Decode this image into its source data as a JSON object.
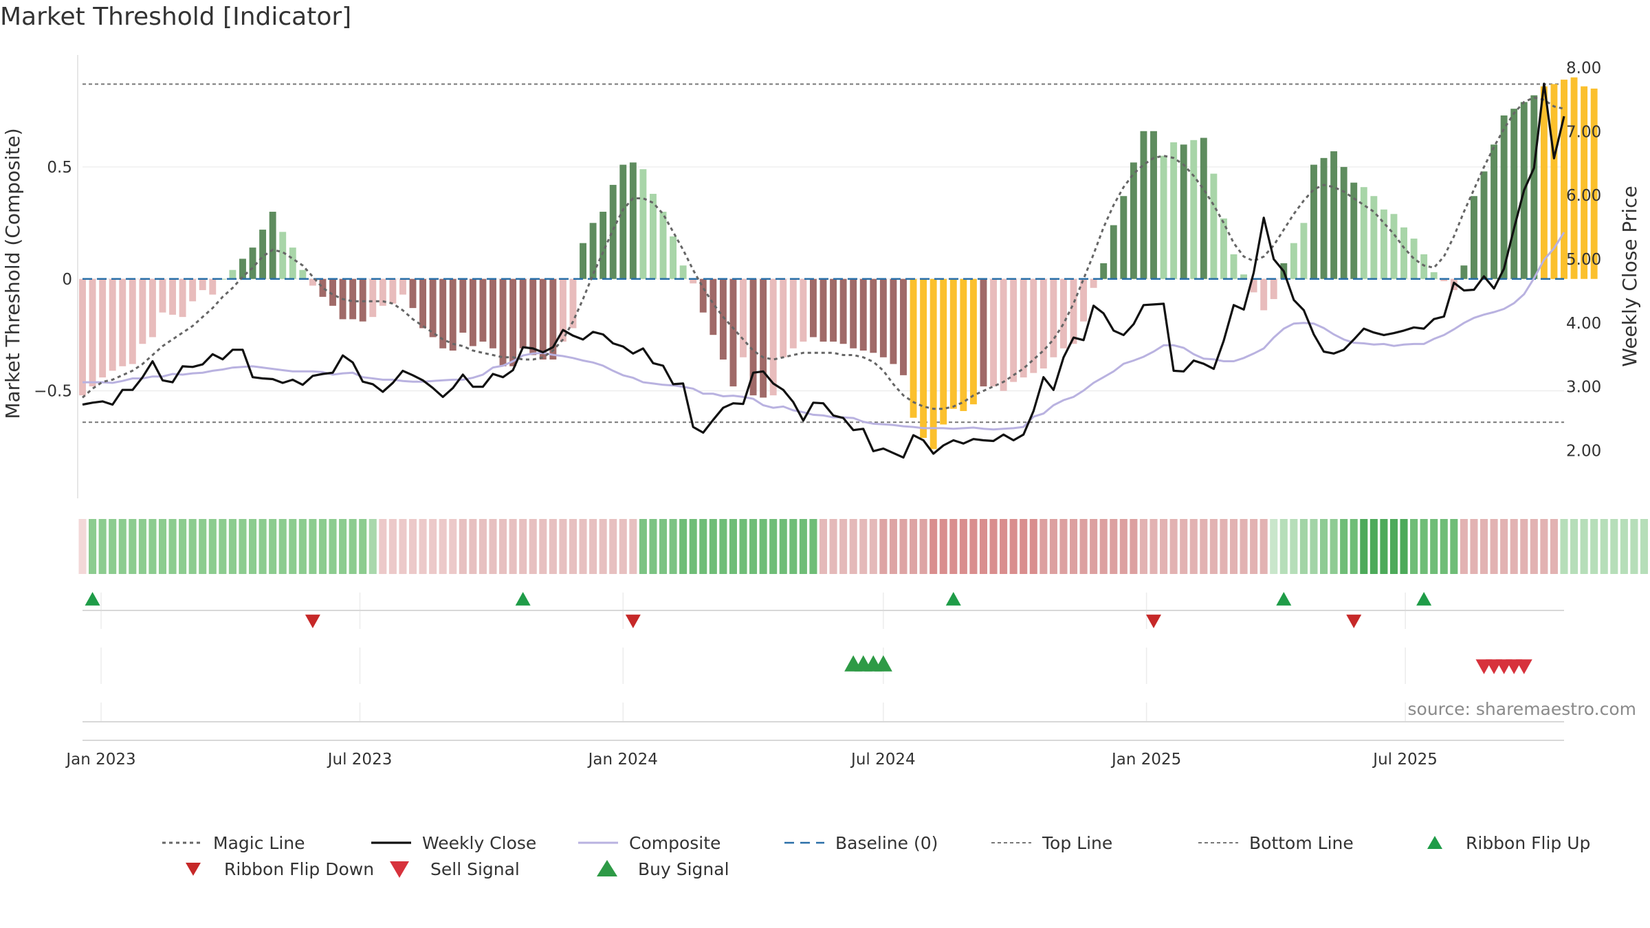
{
  "chart_data": {
    "type": "bar",
    "title": "Market Threshold [Indicator]",
    "ylabel": "Market Threshold (Composite)",
    "y2label": "Weekly Close Price",
    "ylim": [
      -0.98,
      1.0
    ],
    "y2lim": [
      1.25,
      8.2
    ],
    "yticks": [
      0.5,
      0,
      -0.5
    ],
    "ytick_labels": [
      "0.5",
      "0",
      "−0.5"
    ],
    "y2ticks": [
      8,
      7,
      6,
      5,
      4,
      3,
      2
    ],
    "y2tick_labels": [
      "8.00",
      "7.00",
      "6.00",
      "5.00",
      "4.00",
      "3.00",
      "2.00"
    ],
    "x_start": "2022-12-19",
    "x_end": "2025-10-20",
    "xticks": [
      {
        "date": "2023-01-01",
        "label": "Jan 2023"
      },
      {
        "date": "2023-07-01",
        "label": "Jul 2023"
      },
      {
        "date": "2024-01-01",
        "label": "Jan 2024"
      },
      {
        "date": "2024-07-01",
        "label": "Jul 2024"
      },
      {
        "date": "2025-01-01",
        "label": "Jan 2025"
      },
      {
        "date": "2025-07-01",
        "label": "Jul 2025"
      }
    ],
    "top_line": 0.87,
    "bottom_line": -0.64,
    "baseline": 0,
    "grid": true,
    "legend_position": "bottom",
    "source_note": "source: sharemaestro.com",
    "colors": {
      "strong_up": "#5e8c5e",
      "weak_up": "#a8d5a8",
      "strong_down": "#a06a68",
      "weak_down": "#e8bcbc",
      "extreme": "#fbc02d",
      "weekly_close": "#111111",
      "composite": "#b9b2e0",
      "magic": "#666666",
      "baseline": "#2a6fa8",
      "threshold": "#777777",
      "buy": "#2e9a46",
      "sell": "#d7323c",
      "ribbon_flip_up": "#1f9c48",
      "ribbon_flip_down": "#c62828"
    },
    "composite_bars": {
      "start": "2022-12-19",
      "step_days": 7,
      "values": [
        -0.52,
        -0.48,
        -0.44,
        -0.41,
        -0.39,
        -0.38,
        -0.29,
        -0.26,
        -0.15,
        -0.16,
        -0.17,
        -0.1,
        -0.05,
        -0.07,
        0.0,
        0.04,
        0.09,
        0.14,
        0.22,
        0.3,
        0.21,
        0.14,
        0.04,
        -0.03,
        -0.08,
        -0.12,
        -0.18,
        -0.18,
        -0.19,
        -0.17,
        -0.12,
        -0.11,
        -0.07,
        -0.13,
        -0.22,
        -0.26,
        -0.31,
        -0.32,
        -0.24,
        -0.3,
        -0.28,
        -0.31,
        -0.39,
        -0.39,
        -0.31,
        -0.34,
        -0.36,
        -0.36,
        -0.28,
        -0.22,
        0.16,
        0.25,
        0.3,
        0.42,
        0.51,
        0.52,
        0.49,
        0.38,
        0.3,
        0.19,
        0.06,
        -0.02,
        -0.15,
        -0.25,
        -0.36,
        -0.48,
        -0.35,
        -0.52,
        -0.53,
        -0.52,
        -0.35,
        -0.31,
        -0.28,
        -0.26,
        -0.28,
        -0.28,
        -0.29,
        -0.31,
        -0.32,
        -0.33,
        -0.35,
        -0.38,
        -0.43,
        -0.62,
        -0.71,
        -0.76,
        -0.65,
        -0.58,
        -0.59,
        -0.56,
        -0.48,
        -0.48,
        -0.5,
        -0.46,
        -0.44,
        -0.42,
        -0.4,
        -0.35,
        -0.31,
        -0.29,
        -0.19,
        -0.04,
        0.07,
        0.24,
        0.37,
        0.52,
        0.66,
        0.66,
        0.55,
        0.61,
        0.6,
        0.62,
        0.63,
        0.47,
        0.27,
        0.11,
        0.02,
        -0.06,
        -0.14,
        -0.09,
        0.07,
        0.16,
        0.25,
        0.51,
        0.54,
        0.57,
        0.5,
        0.43,
        0.41,
        0.37,
        0.31,
        0.29,
        0.23,
        0.18,
        0.11,
        0.03,
        -0.01,
        -0.05,
        0.06,
        0.37,
        0.48,
        0.6,
        0.73,
        0.76,
        0.79,
        0.82,
        0.86,
        0.87,
        0.89,
        0.9,
        0.86,
        0.85
      ],
      "categories": [
        1,
        1,
        1,
        1,
        1,
        1,
        1,
        1,
        1,
        1,
        1,
        1,
        1,
        1,
        3,
        3,
        2,
        2,
        2,
        2,
        3,
        3,
        3,
        1,
        2,
        2,
        2,
        2,
        2,
        1,
        1,
        1,
        1,
        2,
        2,
        2,
        2,
        2,
        2,
        2,
        2,
        2,
        2,
        2,
        2,
        2,
        2,
        2,
        1,
        1,
        2,
        2,
        2,
        2,
        2,
        2,
        3,
        3,
        3,
        3,
        3,
        1,
        2,
        2,
        2,
        2,
        1,
        2,
        2,
        1,
        1,
        1,
        1,
        2,
        2,
        2,
        2,
        2,
        2,
        2,
        2,
        2,
        2,
        4,
        4,
        4,
        4,
        4,
        4,
        4,
        2,
        1,
        1,
        1,
        1,
        1,
        1,
        1,
        1,
        1,
        1,
        3,
        2,
        2,
        2,
        2,
        2,
        2,
        3,
        3,
        2,
        3,
        2,
        3,
        3,
        3,
        3,
        3,
        1,
        1,
        2,
        1,
        3,
        2,
        2,
        2,
        2,
        2,
        3,
        3,
        3,
        3,
        3,
        3,
        3,
        1,
        1,
        3,
        2,
        2,
        2,
        2,
        2,
        2,
        2,
        2,
        4,
        4,
        4,
        4,
        4,
        4
      ]
    },
    "weekly_close": {
      "start": "2022-12-19",
      "step_days": 7,
      "values": [
        2.72,
        2.75,
        2.77,
        2.72,
        2.95,
        2.95,
        3.15,
        3.4,
        3.1,
        3.07,
        3.32,
        3.31,
        3.35,
        3.51,
        3.43,
        3.58,
        3.58,
        3.15,
        3.13,
        3.12,
        3.06,
        3.11,
        3.03,
        3.17,
        3.2,
        3.22,
        3.49,
        3.38,
        3.08,
        3.04,
        2.92,
        3.06,
        3.25,
        3.18,
        3.1,
        2.98,
        2.84,
        2.98,
        3.19,
        3.0,
        3.0,
        3.2,
        3.15,
        3.26,
        3.62,
        3.6,
        3.54,
        3.62,
        3.89,
        3.8,
        3.74,
        3.86,
        3.82,
        3.68,
        3.63,
        3.52,
        3.6,
        3.37,
        3.33,
        3.04,
        3.05,
        2.37,
        2.28,
        2.48,
        2.67,
        2.74,
        2.73,
        3.22,
        3.24,
        3.05,
        2.95,
        2.76,
        2.47,
        2.75,
        2.74,
        2.55,
        2.51,
        2.32,
        2.34,
        1.99,
        2.03,
        1.96,
        1.89,
        2.24,
        2.16,
        1.95,
        2.08,
        2.16,
        2.11,
        2.18,
        2.16,
        2.15,
        2.25,
        2.16,
        2.25,
        2.62,
        3.15,
        2.95,
        3.46,
        3.77,
        3.73,
        4.27,
        4.15,
        3.88,
        3.81,
        3.98,
        4.28,
        4.29,
        4.3,
        3.25,
        3.24,
        3.41,
        3.36,
        3.28,
        3.72,
        4.28,
        4.21,
        4.79,
        5.65,
        5.0,
        4.81,
        4.36,
        4.2,
        3.82,
        3.55,
        3.52,
        3.58,
        3.74,
        3.91,
        3.85,
        3.81,
        3.84,
        3.88,
        3.93,
        3.91,
        4.06,
        4.1,
        4.63,
        4.51,
        4.52,
        4.73,
        4.54,
        4.85,
        5.48,
        6.08,
        6.43,
        7.75,
        6.58,
        7.24
      ]
    },
    "composite_line": {
      "start": "2022-12-19",
      "step_days": 7,
      "values": [
        3.07,
        3.07,
        3.07,
        3.06,
        3.09,
        3.13,
        3.13,
        3.16,
        3.16,
        3.2,
        3.19,
        3.21,
        3.22,
        3.25,
        3.27,
        3.3,
        3.31,
        3.32,
        3.3,
        3.28,
        3.26,
        3.24,
        3.24,
        3.24,
        3.23,
        3.19,
        3.21,
        3.22,
        3.15,
        3.13,
        3.11,
        3.11,
        3.09,
        3.08,
        3.08,
        3.09,
        3.1,
        3.11,
        3.11,
        3.14,
        3.19,
        3.3,
        3.33,
        3.4,
        3.49,
        3.52,
        3.53,
        3.5,
        3.48,
        3.45,
        3.41,
        3.38,
        3.33,
        3.25,
        3.18,
        3.14,
        3.07,
        3.05,
        3.03,
        3.02,
        3.0,
        2.97,
        2.89,
        2.89,
        2.85,
        2.86,
        2.84,
        2.81,
        2.71,
        2.67,
        2.69,
        2.63,
        2.6,
        2.56,
        2.55,
        2.52,
        2.52,
        2.51,
        2.45,
        2.42,
        2.41,
        2.4,
        2.38,
        2.37,
        2.35,
        2.35,
        2.35,
        2.34,
        2.35,
        2.36,
        2.34,
        2.33,
        2.34,
        2.35,
        2.37,
        2.53,
        2.58,
        2.71,
        2.79,
        2.84,
        2.94,
        3.06,
        3.15,
        3.24,
        3.36,
        3.41,
        3.47,
        3.55,
        3.65,
        3.65,
        3.61,
        3.51,
        3.44,
        3.43,
        3.4,
        3.4,
        3.45,
        3.52,
        3.6,
        3.77,
        3.91,
        3.99,
        4.0,
        3.99,
        3.92,
        3.82,
        3.74,
        3.69,
        3.68,
        3.66,
        3.67,
        3.64,
        3.66,
        3.67,
        3.67,
        3.75,
        3.81,
        3.9,
        4.0,
        4.08,
        4.13,
        4.17,
        4.22,
        4.31,
        4.45,
        4.7,
        4.99,
        5.17,
        5.42
      ]
    },
    "magic_line": {
      "start": "2022-12-19",
      "step_days": 7,
      "values": [
        -0.53,
        -0.49,
        -0.46,
        -0.45,
        -0.43,
        -0.41,
        -0.38,
        -0.34,
        -0.3,
        -0.27,
        -0.24,
        -0.21,
        -0.17,
        -0.13,
        -0.08,
        -0.04,
        0.01,
        0.05,
        0.1,
        0.13,
        0.12,
        0.09,
        0.06,
        0.01,
        -0.04,
        -0.07,
        -0.09,
        -0.1,
        -0.1,
        -0.1,
        -0.1,
        -0.11,
        -0.14,
        -0.18,
        -0.21,
        -0.24,
        -0.27,
        -0.29,
        -0.3,
        -0.32,
        -0.33,
        -0.34,
        -0.35,
        -0.35,
        -0.36,
        -0.36,
        -0.35,
        -0.32,
        -0.27,
        -0.19,
        -0.09,
        0.02,
        0.12,
        0.22,
        0.31,
        0.36,
        0.36,
        0.34,
        0.29,
        0.21,
        0.13,
        0.04,
        -0.04,
        -0.11,
        -0.17,
        -0.22,
        -0.27,
        -0.32,
        -0.35,
        -0.36,
        -0.35,
        -0.34,
        -0.33,
        -0.33,
        -0.33,
        -0.33,
        -0.34,
        -0.34,
        -0.35,
        -0.37,
        -0.41,
        -0.47,
        -0.52,
        -0.55,
        -0.57,
        -0.58,
        -0.58,
        -0.57,
        -0.55,
        -0.52,
        -0.5,
        -0.48,
        -0.46,
        -0.43,
        -0.4,
        -0.36,
        -0.32,
        -0.27,
        -0.2,
        -0.11,
        0.0,
        0.11,
        0.23,
        0.33,
        0.41,
        0.47,
        0.51,
        0.54,
        0.55,
        0.54,
        0.51,
        0.46,
        0.4,
        0.33,
        0.25,
        0.16,
        0.1,
        0.08,
        0.1,
        0.15,
        0.22,
        0.29,
        0.35,
        0.4,
        0.42,
        0.41,
        0.39,
        0.36,
        0.33,
        0.3,
        0.25,
        0.2,
        0.14,
        0.09,
        0.06,
        0.05,
        0.1,
        0.19,
        0.3,
        0.4,
        0.5,
        0.59,
        0.67,
        0.74,
        0.79,
        0.81,
        0.8,
        0.77,
        0.76
      ]
    },
    "ribbon": {
      "start": "2022-12-19",
      "step_days": 7,
      "colors": [
        "#f3d8d8",
        "#8ccc8f",
        "#8ccc8f",
        "#8ccc8f",
        "#8ccc8f",
        "#8ccc8f",
        "#8ccc8f",
        "#8ccc8f",
        "#8ccc8f",
        "#8ccc8f",
        "#8ccc8f",
        "#8ccc8f",
        "#8ccc8f",
        "#8ccc8f",
        "#8ccc8f",
        "#8ccc8f",
        "#8ccc8f",
        "#8ccc8f",
        "#8ccc8f",
        "#8ccc8f",
        "#8ccc8f",
        "#8ccc8f",
        "#8ccc8f",
        "#8ccc8f",
        "#8ccc8f",
        "#8ccc8f",
        "#8ccc8f",
        "#8ccc8f",
        "#8ccc8f",
        "#a9d8ac",
        "#ecc9c9",
        "#ecc9c9",
        "#ecc9c9",
        "#ecc9c9",
        "#ecc9c9",
        "#ecc9c9",
        "#ecc9c9",
        "#ecc9c9",
        "#e7c0c0",
        "#e7c0c0",
        "#e7c0c0",
        "#e7c0c0",
        "#e7c0c0",
        "#e7c0c0",
        "#e7c0c0",
        "#e7c0c0",
        "#e7c0c0",
        "#e7c0c0",
        "#e7c0c0",
        "#e7c0c0",
        "#e7c0c0",
        "#e7c0c0",
        "#e7c0c0",
        "#e7c0c0",
        "#e7c0c0",
        "#e7c0c0",
        "#7cc383",
        "#7cc383",
        "#7cc383",
        "#7cc383",
        "#6fbd77",
        "#6fbd77",
        "#6fbd77",
        "#6fbd77",
        "#6fbd77",
        "#6fbd77",
        "#6fbd77",
        "#6fbd77",
        "#6fbd77",
        "#6fbd77",
        "#6fbd77",
        "#6fbd77",
        "#6fbd77",
        "#6fbd77",
        "#e4b9b9",
        "#e4b9b9",
        "#e4b9b9",
        "#e4b9b9",
        "#e4b9b9",
        "#e4b9b9",
        "#dda4a4",
        "#dda4a4",
        "#dda4a4",
        "#dda4a4",
        "#dda4a4",
        "#d98e8e",
        "#d98e8e",
        "#d98e8e",
        "#d98e8e",
        "#d98e8e",
        "#d98e8e",
        "#d98e8e",
        "#d98e8e",
        "#d98e8e",
        "#d98e8e",
        "#d98e8e",
        "#dca0a0",
        "#dca0a0",
        "#dca0a0",
        "#dca0a0",
        "#dca0a0",
        "#dca0a0",
        "#dca0a0",
        "#dca0a0",
        "#dca0a0",
        "#dca0a0",
        "#e2b2b2",
        "#e2b2b2",
        "#e2b2b2",
        "#e2b2b2",
        "#e2b2b2",
        "#e2b2b2",
        "#e2b2b2",
        "#e2b2b2",
        "#e2b2b2",
        "#e2b2b2",
        "#e2b2b2",
        "#e2b2b2",
        "#e2b2b2",
        "#c9e6cb",
        "#b6deb9",
        "#b6deb9",
        "#a2d4a6",
        "#a2d4a6",
        "#8ecb93",
        "#8ecb93",
        "#6fbd77",
        "#6fbd77",
        "#4daa5a",
        "#4daa5a",
        "#4daa5a",
        "#4daa5a",
        "#4daa5a",
        "#6fbd77",
        "#6fbd77",
        "#6fbd77",
        "#6fbd77",
        "#6fbd77",
        "#e2b2b2",
        "#e2b2b2",
        "#e2b2b2",
        "#e2b2b2",
        "#e2b2b2",
        "#e2b2b2",
        "#e2b2b2",
        "#e2b2b2",
        "#e2b2b2",
        "#e2b2b2",
        "#b6deb9",
        "#b6deb9",
        "#b6deb9",
        "#b6deb9",
        "#b6deb9",
        "#b6deb9",
        "#b6deb9",
        "#b6deb9",
        "#b6deb9",
        "#b6deb9",
        "#b6deb9",
        "#b6deb9",
        "#f0d4d4",
        "#f0d4d4",
        "#f0d4d4",
        "#f0d4d4",
        "#f0d4d4",
        "#f0d4d4",
        "#f0d4d4",
        "#f0d4d4",
        "#f0d4d4",
        "#f0d4d4",
        "#9fd3a3",
        "#9fd3a3",
        "#9fd3a3",
        "#9fd3a3",
        "#9fd3a3",
        "#9fd3a3",
        "#9fd3a3",
        "#9fd3a3",
        "#9fd3a3",
        "#9fd3a3",
        "#9fd3a3",
        "#9fd3a3"
      ]
    },
    "ribbon_flip_up": [
      "2022-12-26",
      "2023-10-23",
      "2024-08-19",
      "2025-04-07",
      "2025-07-14"
    ],
    "ribbon_flip_down": [
      "2023-05-29",
      "2024-01-08",
      "2025-01-06",
      "2025-05-26"
    ],
    "buy_signal": [
      "2024-06-10",
      "2024-06-17",
      "2024-06-24",
      "2024-07-01"
    ],
    "sell_signal": [
      "2025-08-25",
      "2025-09-01",
      "2025-09-08",
      "2025-09-15",
      "2025-09-22"
    ],
    "legend": [
      {
        "key": "magic",
        "label": "Magic Line"
      },
      {
        "key": "weekly_close",
        "label": "Weekly Close"
      },
      {
        "key": "composite",
        "label": "Composite"
      },
      {
        "key": "baseline",
        "label": "Baseline (0)"
      },
      {
        "key": "top",
        "label": "Top Line"
      },
      {
        "key": "bottom",
        "label": "Bottom Line"
      },
      {
        "key": "flip_up",
        "label": "Ribbon Flip Up"
      },
      {
        "key": "flip_down",
        "label": "Ribbon Flip Down"
      },
      {
        "key": "sell",
        "label": "Sell Signal"
      },
      {
        "key": "buy",
        "label": "Buy Signal"
      }
    ]
  }
}
